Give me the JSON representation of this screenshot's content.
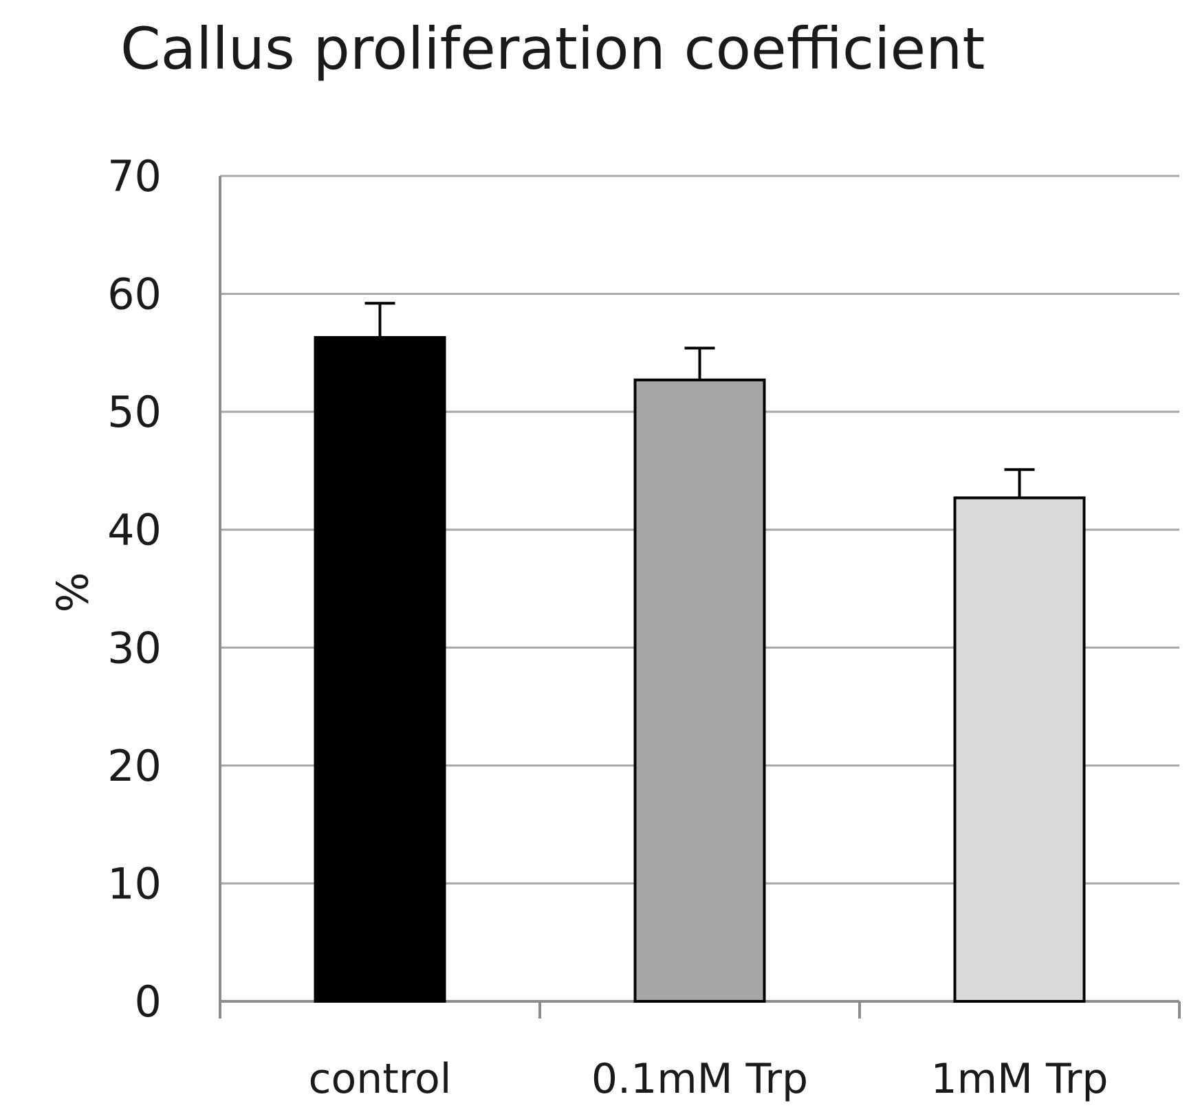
{
  "chart_data": {
    "type": "bar",
    "title": "Callus proliferation coefficient",
    "xlabel": "",
    "ylabel": "%",
    "ylim": [
      0,
      70
    ],
    "yticks": [
      0,
      10,
      20,
      30,
      40,
      50,
      60,
      70
    ],
    "grid": true,
    "categories": [
      "control",
      "0.1mM Trp",
      "1mM Trp"
    ],
    "values": [
      56.3,
      52.7,
      42.7
    ],
    "errors": [
      2.9,
      2.7,
      2.4
    ],
    "colors": [
      "#000000",
      "#a6a6a6",
      "#d9d9d9"
    ]
  }
}
